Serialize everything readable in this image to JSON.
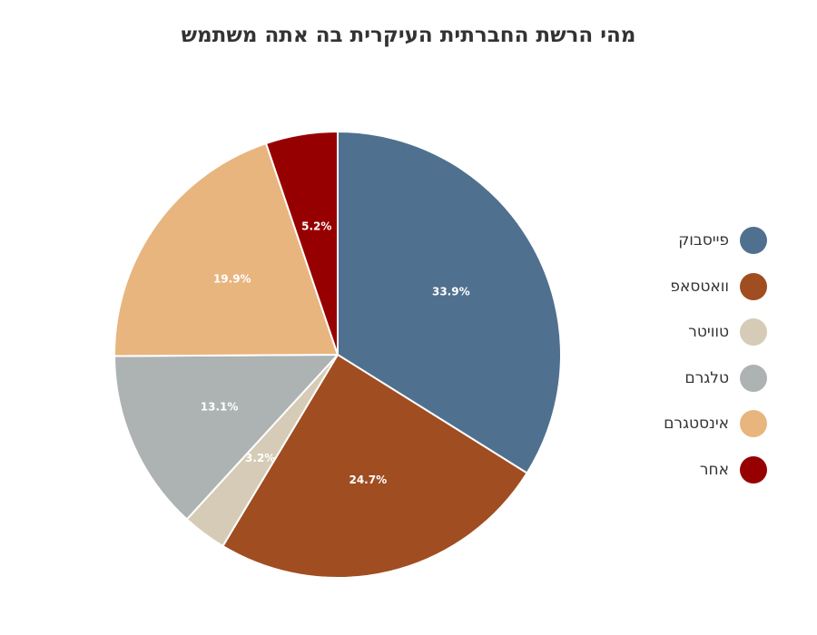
{
  "chart_data": {
    "type": "pie",
    "title": "מהי הרשת החברתית העיקרית בה אתה משתמש",
    "categories": [
      "פייסבוק",
      "וואטסאפ",
      "טוויטר",
      "טלגרם",
      "אינסטגרם",
      "אחר"
    ],
    "values": [
      33.9,
      24.7,
      3.2,
      13.1,
      19.9,
      5.2
    ],
    "labels": [
      "33.9%",
      "24.7%",
      "3.2%",
      "13.1%",
      "19.9%",
      "5.2%"
    ],
    "colors": [
      "#50708f",
      "#a04d21",
      "#d6cbb6",
      "#adb2b2",
      "#e8b57e",
      "#970000"
    ],
    "legend_position": "right",
    "start_angle": "top, clockwise"
  }
}
